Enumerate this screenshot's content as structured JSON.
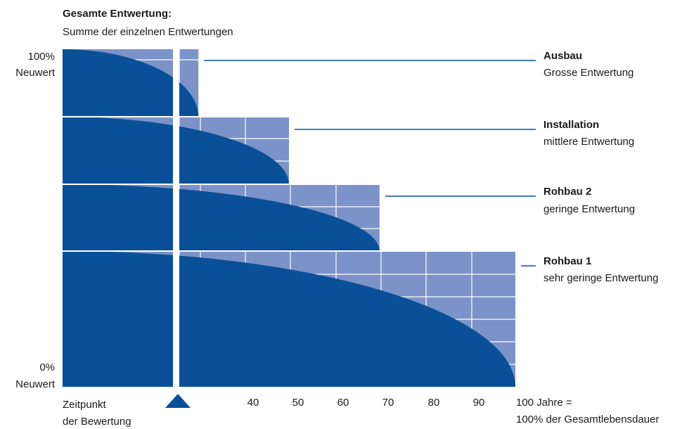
{
  "header": {
    "title": "Gesamte Entwertung:",
    "subtitle": "Summe der einzelnen Entwertungen"
  },
  "y_axis": {
    "top_percent": "100%",
    "top_label": "Neuwert",
    "bottom_percent": "0%",
    "bottom_label": "Neuwert"
  },
  "x_axis": {
    "ticks": [
      "40",
      "50",
      "60",
      "70",
      "80",
      "90"
    ],
    "end_label_line1": "100 Jahre =",
    "end_label_line2": "100% der Gesamtlebensdauer",
    "marker_label_line1": "Zeitpunkt",
    "marker_label_line2": "der Bewertung"
  },
  "components": [
    {
      "title": "Ausbau",
      "description": "Grosse Entwertung",
      "lifespan_years": 30
    },
    {
      "title": "Installation",
      "description": "mittlere Entwertung",
      "lifespan_years": 50
    },
    {
      "title": "Rohbau 2",
      "description": "geringe Entwertung",
      "lifespan_years": 70
    },
    {
      "title": "Rohbau 1",
      "description": "sehr geringe Entwertung",
      "lifespan_years": 100
    }
  ],
  "assessment_point_years": 25,
  "colors": {
    "curve": "#0a5098",
    "grid_fill": "#7b93c8",
    "grid_line": "#ffffff",
    "leader_line": "#0a5098",
    "marker": "#0a5098"
  }
}
